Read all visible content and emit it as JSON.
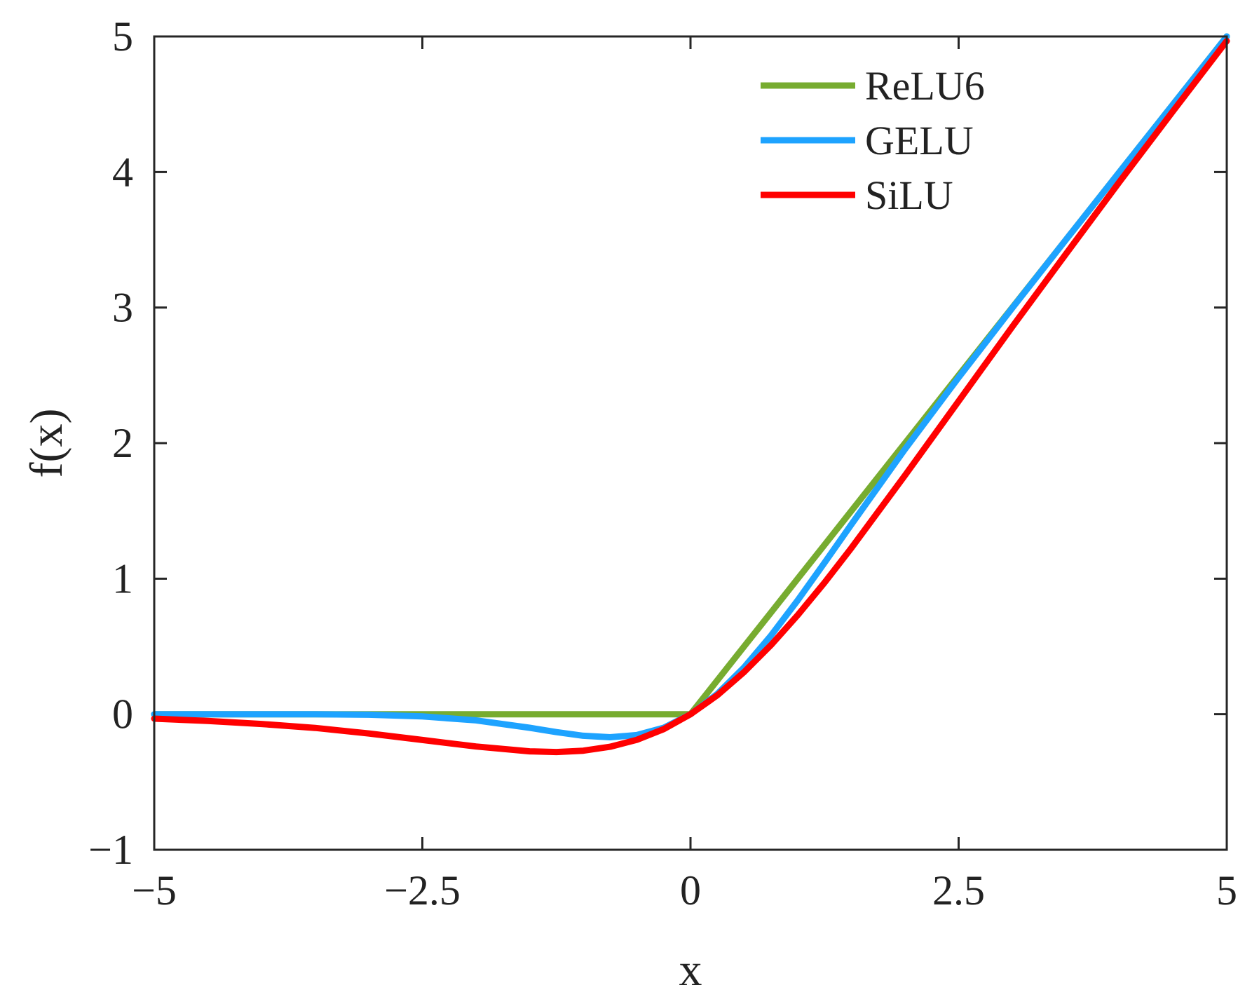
{
  "chart_data": {
    "type": "line",
    "xlabel": "x",
    "ylabel": "f(x)",
    "xlim": [
      -5,
      5
    ],
    "ylim": [
      -1,
      5
    ],
    "xticks": [
      -5,
      -2.5,
      0,
      2.5,
      5
    ],
    "xtick_labels": [
      "−5",
      "−2.5",
      "0",
      "2.5",
      "5"
    ],
    "yticks": [
      -1,
      0,
      1,
      2,
      3,
      4,
      5
    ],
    "ytick_labels": [
      "−1",
      "0",
      "1",
      "2",
      "3",
      "4",
      "5"
    ],
    "grid": false,
    "legend_position": "top-right",
    "x": [
      -5,
      -4.5,
      -4,
      -3.5,
      -3,
      -2.5,
      -2,
      -1.5,
      -1.25,
      -1,
      -0.75,
      -0.5,
      -0.25,
      0,
      0.25,
      0.5,
      0.75,
      1,
      1.25,
      1.5,
      2,
      2.5,
      3,
      3.5,
      4,
      4.5,
      5
    ],
    "series": [
      {
        "name": "ReLU6",
        "color": "#77ac30",
        "values": [
          0,
          0,
          0,
          0,
          0,
          0,
          0,
          0,
          0,
          0,
          0,
          0,
          0,
          0,
          0.25,
          0.5,
          0.75,
          1,
          1.25,
          1.5,
          2,
          2.5,
          3,
          3.5,
          4,
          4.5,
          5
        ]
      },
      {
        "name": "GELU",
        "color": "#1ea3ff",
        "values": [
          0,
          0,
          0,
          0,
          -0.004,
          -0.016,
          -0.045,
          -0.1,
          -0.132,
          -0.159,
          -0.17,
          -0.154,
          -0.1,
          0,
          0.15,
          0.346,
          0.58,
          0.841,
          1.118,
          1.4,
          1.955,
          2.484,
          2.996,
          3.5,
          4,
          4.5,
          5
        ]
      },
      {
        "name": "SiLU",
        "color": "#ff0000",
        "values": [
          -0.033,
          -0.05,
          -0.072,
          -0.101,
          -0.142,
          -0.19,
          -0.238,
          -0.274,
          -0.279,
          -0.269,
          -0.24,
          -0.189,
          -0.11,
          0,
          0.14,
          0.311,
          0.51,
          0.731,
          0.971,
          1.226,
          1.762,
          2.31,
          2.858,
          3.395,
          3.928,
          4.45,
          4.967
        ]
      }
    ]
  }
}
